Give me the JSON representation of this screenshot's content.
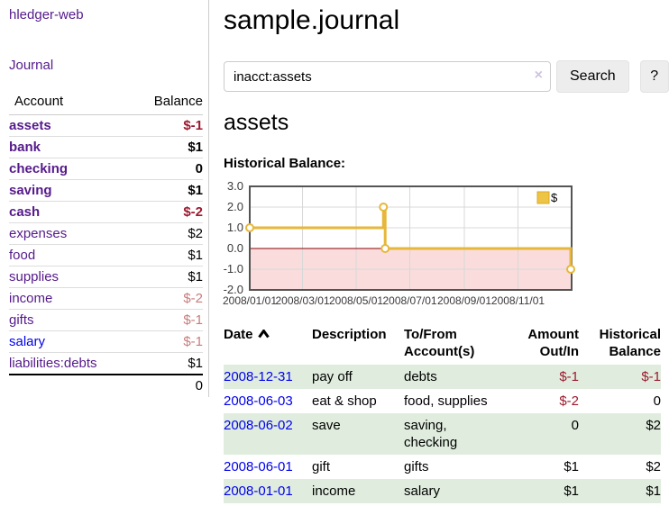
{
  "brand": "hledger-web",
  "nav": {
    "journal": "Journal"
  },
  "sidebar": {
    "headers": {
      "account": "Account",
      "balance": "Balance"
    },
    "rows": [
      {
        "name": "assets",
        "balance": "$-1"
      },
      {
        "name": "bank",
        "balance": "$1"
      },
      {
        "name": "checking",
        "balance": "0"
      },
      {
        "name": "saving",
        "balance": "$1"
      },
      {
        "name": "cash",
        "balance": "$-2"
      },
      {
        "name": "expenses",
        "balance": "$2"
      },
      {
        "name": "food",
        "balance": "$1"
      },
      {
        "name": "supplies",
        "balance": "$1"
      },
      {
        "name": "income",
        "balance": "$-2"
      },
      {
        "name": "gifts",
        "balance": "$-1"
      },
      {
        "name": "salary",
        "balance": "$-1"
      },
      {
        "name": "liabilities:debts",
        "balance": "$1"
      }
    ],
    "total": "0"
  },
  "main": {
    "title": "sample.journal",
    "search": {
      "value": "inacct:assets",
      "clear": "×",
      "button": "Search",
      "help": "?"
    },
    "heading": "assets",
    "chart_title": "Historical Balance:"
  },
  "chart_data": {
    "type": "line",
    "style": "step-after",
    "title": "Historical Balance:",
    "series": [
      {
        "name": "$",
        "color": "#e6b73a",
        "points": [
          [
            "2008-01-01",
            1.0
          ],
          [
            "2008-06-01",
            2.0
          ],
          [
            "2008-06-03",
            0.0
          ],
          [
            "2008-12-31",
            -1.0
          ]
        ]
      }
    ],
    "xlim": [
      "2008-01-01",
      "2009-01-01"
    ],
    "ylim": [
      -2.0,
      3.0
    ],
    "yticks": [
      3.0,
      2.0,
      1.0,
      0.0,
      -1.0,
      -2.0
    ],
    "xticks": [
      "2008/01/01",
      "2008/03/01",
      "2008/05/01",
      "2008/07/01",
      "2008/09/01",
      "2008/11/01"
    ],
    "grid": true,
    "legend_position": "top-right",
    "legend_label": "$",
    "negative_region_color": "#fadcdc",
    "zero_line_color": "#8b0000",
    "border_color": "#545454",
    "grid_color": "#d8d8d8"
  },
  "register": {
    "headers": [
      "Date",
      "Description",
      "To/From Account(s)",
      "Amount Out/In",
      "Historical Balance"
    ],
    "rows": [
      {
        "date": "2008-12-31",
        "description": "pay off",
        "accounts": "debts",
        "amount": "$-1",
        "balance": "$-1"
      },
      {
        "date": "2008-06-03",
        "description": "eat & shop",
        "accounts": "food, supplies",
        "amount": "$-2",
        "balance": "0"
      },
      {
        "date": "2008-06-02",
        "description": "save",
        "accounts": "saving, checking",
        "amount": "0",
        "balance": "$2"
      },
      {
        "date": "2008-06-01",
        "description": "gift",
        "accounts": "gifts",
        "amount": "$1",
        "balance": "$2"
      },
      {
        "date": "2008-01-01",
        "description": "income",
        "accounts": "salary",
        "amount": "$1",
        "balance": "$1"
      }
    ]
  }
}
